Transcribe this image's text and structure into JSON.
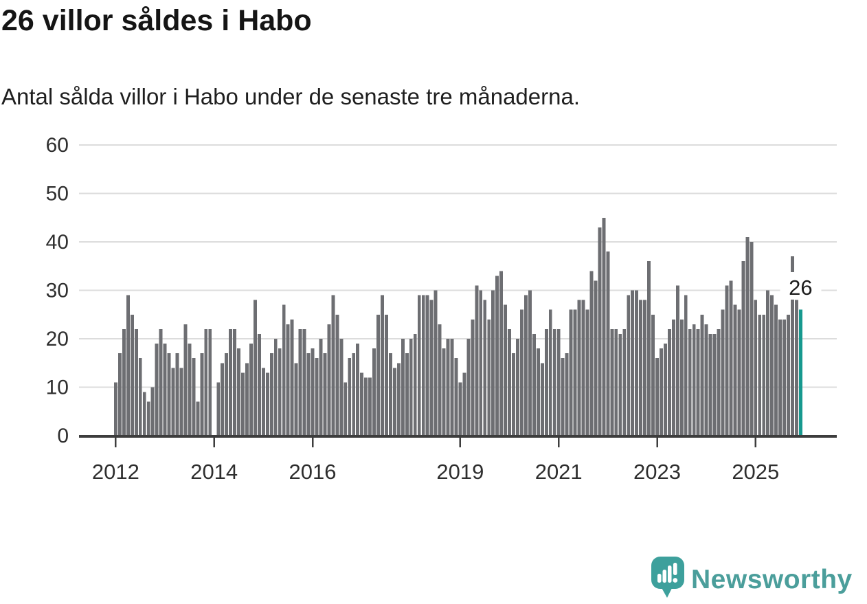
{
  "header": {
    "title": "26 villor såldes i Habo",
    "subtitle": "Antal sålda villor i Habo under de senaste tre månaderna."
  },
  "chart_data": {
    "type": "bar",
    "title": "26 villor såldes i Habo",
    "subtitle": "Antal sålda villor i Habo under de senaste tre månaderna.",
    "x_period_start": "2012",
    "x_period_end": "2025",
    "values": [
      11,
      17,
      22,
      29,
      25,
      22,
      16,
      9,
      7,
      10,
      19,
      22,
      19,
      17,
      14,
      17,
      14,
      23,
      19,
      16,
      7,
      17,
      22,
      22,
      0,
      11,
      15,
      17,
      22,
      22,
      18,
      13,
      15,
      19,
      28,
      21,
      14,
      13,
      17,
      20,
      18,
      27,
      23,
      24,
      15,
      22,
      22,
      17,
      18,
      16,
      20,
      17,
      23,
      29,
      25,
      20,
      11,
      16,
      17,
      19,
      13,
      12,
      12,
      18,
      25,
      29,
      25,
      17,
      14,
      15,
      20,
      17,
      20,
      21,
      29,
      29,
      29,
      28,
      30,
      23,
      18,
      20,
      20,
      16,
      11,
      13,
      20,
      24,
      31,
      30,
      28,
      24,
      30,
      33,
      34,
      27,
      22,
      17,
      20,
      26,
      29,
      30,
      21,
      18,
      15,
      22,
      26,
      22,
      22,
      16,
      17,
      26,
      26,
      28,
      28,
      26,
      34,
      32,
      43,
      45,
      38,
      22,
      22,
      21,
      22,
      29,
      30,
      30,
      28,
      28,
      36,
      25,
      16,
      18,
      19,
      22,
      24,
      31,
      24,
      29,
      22,
      23,
      22,
      25,
      23,
      21,
      21,
      22,
      26,
      31,
      32,
      27,
      26,
      36,
      41,
      40,
      28,
      25,
      25,
      30,
      29,
      27,
      24,
      24,
      25,
      37,
      28,
      26
    ],
    "highlight_index": 167,
    "highlight_label": "26",
    "y_ticks": [
      0,
      10,
      20,
      30,
      40,
      50,
      60
    ],
    "ylim": [
      0,
      60
    ],
    "x_ticks": [
      {
        "label": "2012",
        "month": 0
      },
      {
        "label": "2014",
        "month": 24
      },
      {
        "label": "2016",
        "month": 48
      },
      {
        "label": "2019",
        "month": 84
      },
      {
        "label": "2021",
        "month": 108
      },
      {
        "label": "2023",
        "month": 132
      },
      {
        "label": "2025",
        "month": 156
      }
    ],
    "grid": true,
    "legend": "none",
    "bar_color": "#6d6e72",
    "highlight_color": "#17998f",
    "grid_color": "#dcdcdc",
    "axis_color": "#3d3d3d",
    "tick_text_color": "#2e2e2e"
  },
  "footer": {
    "brand": "Newsworthy",
    "logo_bubble_color": "#3da09c",
    "brand_text_color": "#4b9e9b"
  }
}
